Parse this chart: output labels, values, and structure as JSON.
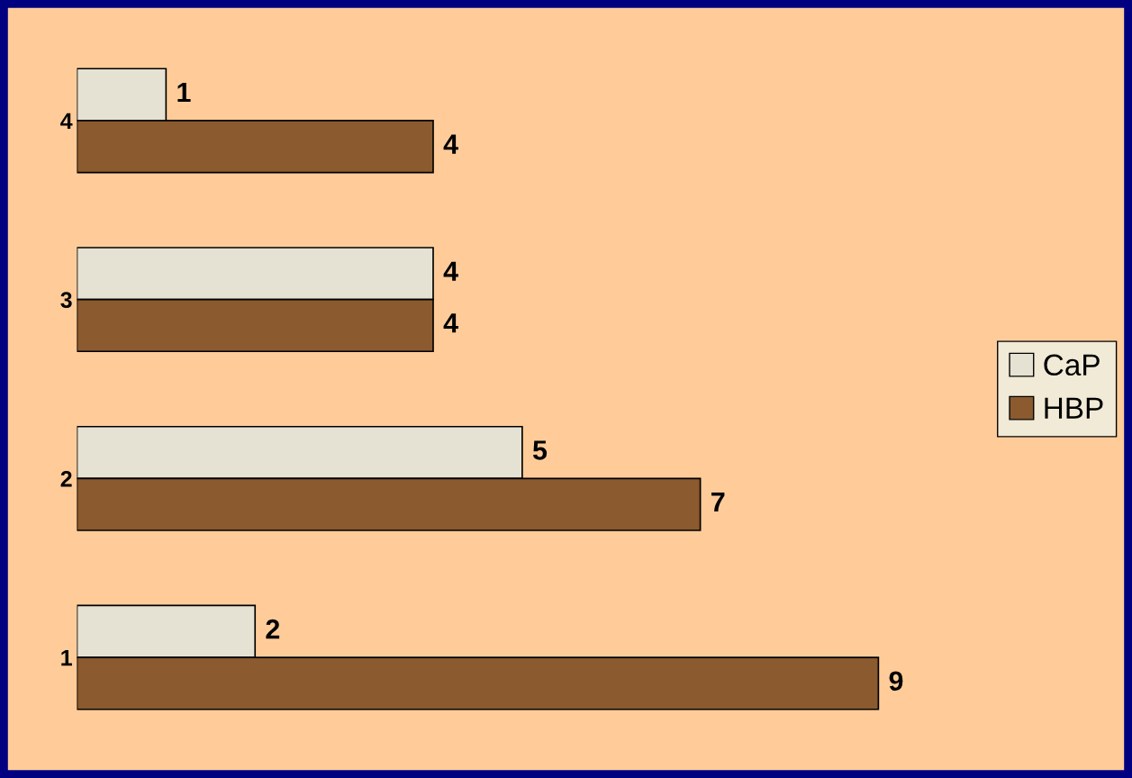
{
  "chart_data": {
    "type": "bar",
    "orientation": "horizontal",
    "categories": [
      "4",
      "3",
      "2",
      "1"
    ],
    "series": [
      {
        "name": "CaP",
        "color": "#e6e2d3",
        "values": [
          1,
          4,
          5,
          2
        ]
      },
      {
        "name": "HBP",
        "color": "#8b5a2e",
        "values": [
          4,
          4,
          7,
          9
        ]
      }
    ],
    "data_labels": true,
    "legend": "right",
    "tick_labels": "y"
  }
}
